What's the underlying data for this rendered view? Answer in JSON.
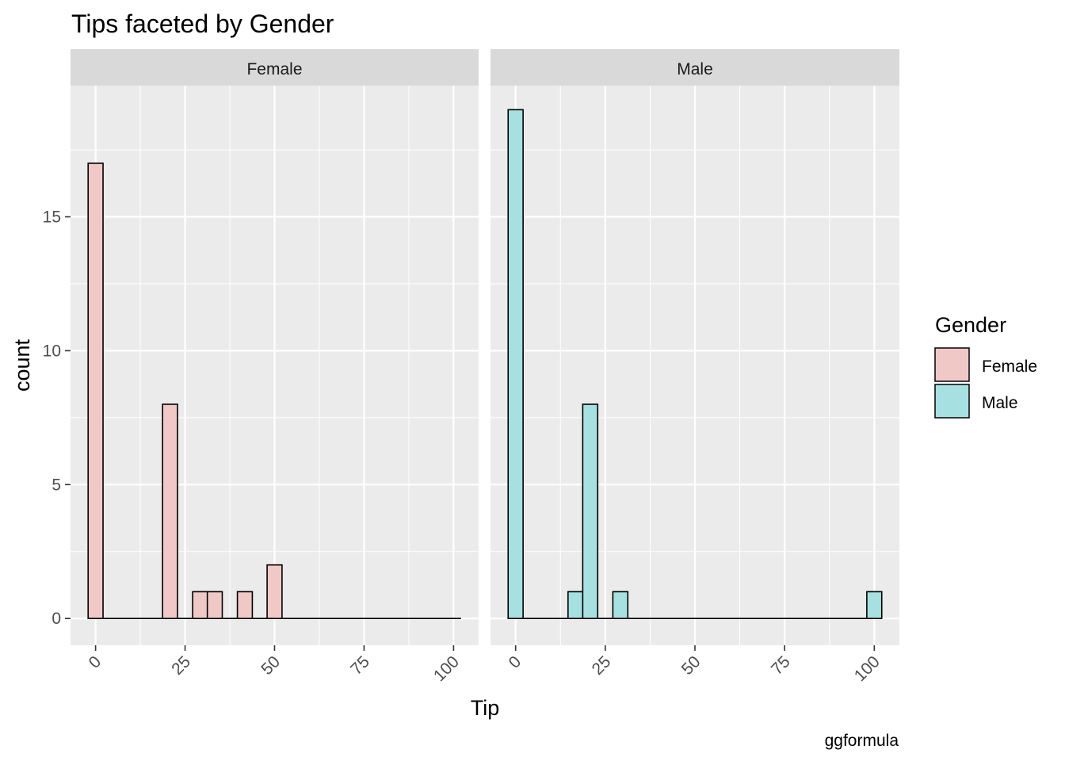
{
  "chart_data": {
    "type": "bar",
    "title": "Tips faceted by Gender",
    "xlabel": "Tip",
    "ylabel": "count",
    "caption": "ggformula",
    "xlim": [
      -7,
      107
    ],
    "ylim": [
      -1,
      19.9
    ],
    "x_ticks": [
      "0",
      "25",
      "50",
      "75",
      "100"
    ],
    "y_ticks": [
      "0",
      "5",
      "10",
      "15"
    ],
    "bin_width": 4.17,
    "grid": true,
    "legend": {
      "title": "Gender",
      "position": "right",
      "entries": [
        {
          "label": "Female",
          "color": "#F0C9C7"
        },
        {
          "label": "Male",
          "color": "#A7E0E1"
        }
      ]
    },
    "facets": [
      {
        "name": "Female",
        "color": "#F0C9C7",
        "bins": [
          {
            "x": 0,
            "count": 17
          },
          {
            "x": 20.8,
            "count": 8
          },
          {
            "x": 29.2,
            "count": 1
          },
          {
            "x": 33.3,
            "count": 1
          },
          {
            "x": 41.7,
            "count": 1
          },
          {
            "x": 50,
            "count": 2
          }
        ],
        "baseline_to": 100
      },
      {
        "name": "Male",
        "color": "#A7E0E1",
        "bins": [
          {
            "x": 0,
            "count": 19
          },
          {
            "x": 16.7,
            "count": 1
          },
          {
            "x": 20.8,
            "count": 8
          },
          {
            "x": 29.2,
            "count": 1
          },
          {
            "x": 100,
            "count": 1
          }
        ],
        "baseline_to": 100
      }
    ]
  }
}
